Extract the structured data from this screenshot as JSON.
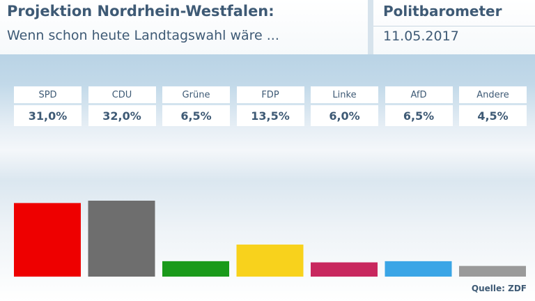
{
  "header": {
    "title": "Projektion Nordrhein-Westfalen:",
    "subtitle": "Wenn schon heute Landtagswahl wäre ...",
    "brand": "Politbarometer",
    "date": "11.05.2017"
  },
  "chart_data": {
    "type": "bar",
    "title": "Projektion Nordrhein-Westfalen:",
    "subtitle": "Wenn schon heute Landtagswahl wäre ...",
    "categories": [
      "SPD",
      "CDU",
      "Grüne",
      "FDP",
      "Linke",
      "AfD",
      "Andere"
    ],
    "values": [
      31.0,
      32.0,
      6.5,
      13.5,
      6.0,
      6.5,
      4.5
    ],
    "value_labels": [
      "31,0%",
      "32,0%",
      "6,5%",
      "13,5%",
      "6,0%",
      "6,5%",
      "4,5%"
    ],
    "colors": [
      "#ee0000",
      "#6e6e6e",
      "#1a9a1a",
      "#f8d21c",
      "#c8275e",
      "#3aa5e6",
      "#9a9a9a"
    ],
    "ylim": [
      0,
      32
    ],
    "grid": false,
    "legend": "none"
  },
  "source": "Quelle: ZDF"
}
